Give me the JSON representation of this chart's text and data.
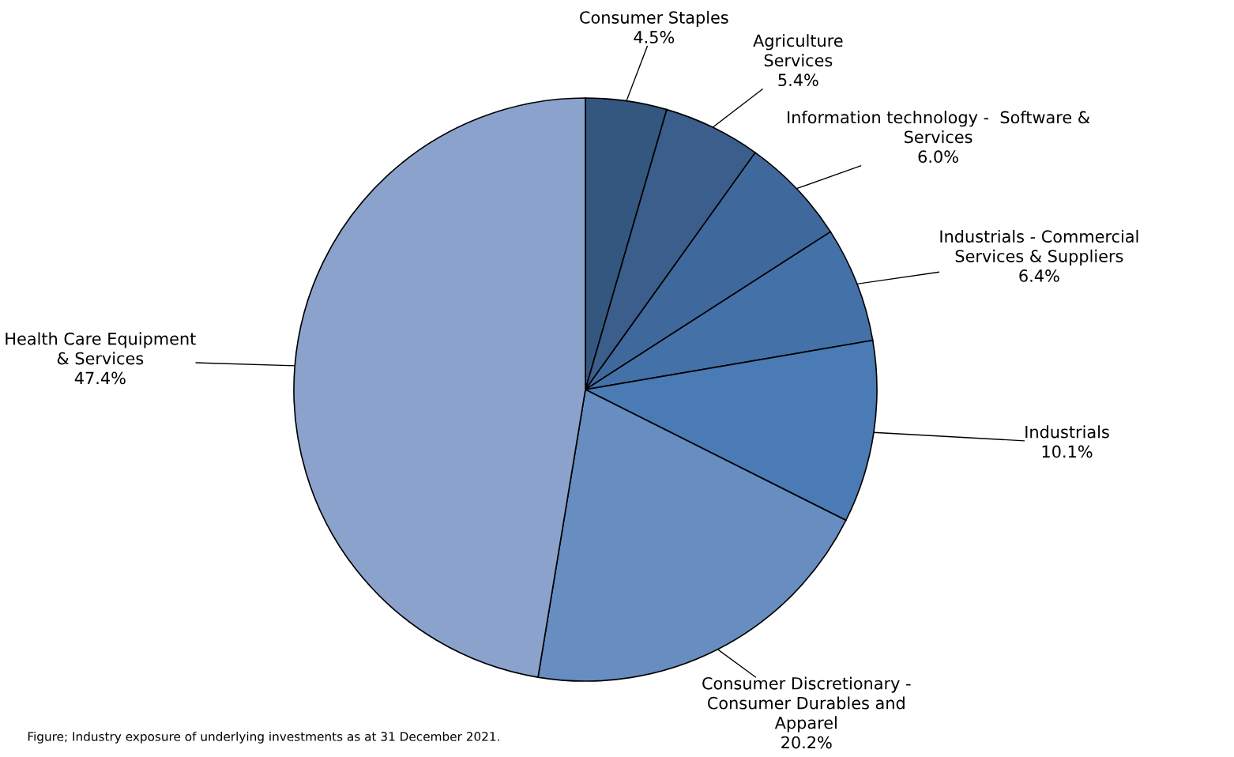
{
  "chart_data": {
    "type": "pie",
    "categories": [
      "Consumer Staples",
      "Agriculture\nServices",
      "Information technology -  Software &\nServices",
      "Industrials - Commercial\nServices & Suppliers",
      "Industrials",
      "Consumer Discretionary -\nConsumer Durables and\nApparel",
      "Health Care Equipment\n& Services"
    ],
    "values": [
      4.5,
      5.4,
      6.0,
      6.4,
      10.1,
      20.2,
      47.4
    ],
    "value_labels": [
      "4.5%",
      "5.4%",
      "6.0%",
      "6.4%",
      "10.1%",
      "20.2%",
      "47.4%"
    ],
    "colors": [
      "#34577f",
      "#3b5e8c",
      "#3f699c",
      "#4472a8",
      "#4a7bb5",
      "#678dc1",
      "#8ba3cc"
    ],
    "legend": false,
    "annotations": [
      "Figure; Industry exposure of underlying investments as at 31 December 2021."
    ]
  }
}
